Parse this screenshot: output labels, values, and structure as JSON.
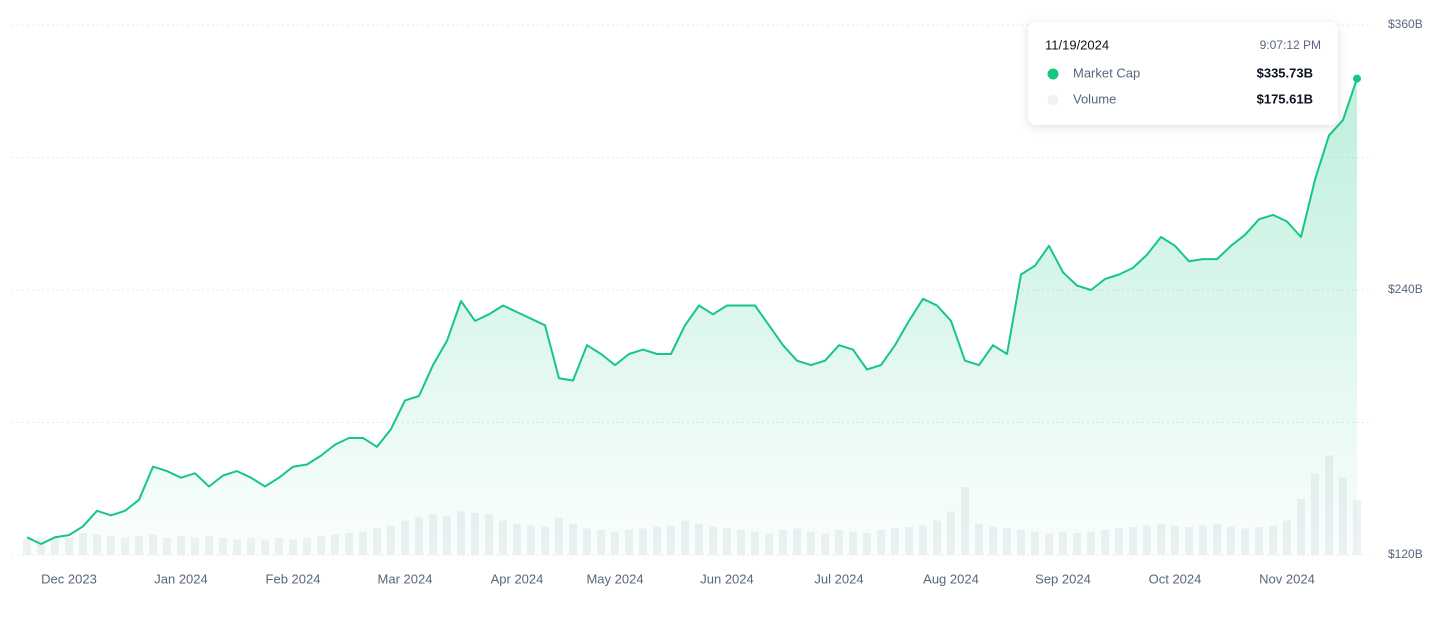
{
  "chart_data": {
    "type": "line",
    "categories": [
      null,
      null,
      null,
      "Dec 2023",
      null,
      null,
      null,
      null,
      null,
      null,
      null,
      "Jan 2024",
      null,
      null,
      null,
      null,
      null,
      null,
      null,
      "Feb 2024",
      null,
      null,
      null,
      null,
      null,
      null,
      null,
      "Mar 2024",
      null,
      null,
      null,
      null,
      null,
      null,
      null,
      "Apr 2024",
      null,
      null,
      null,
      null,
      null,
      null,
      "May 2024",
      null,
      null,
      null,
      null,
      null,
      null,
      null,
      "Jun 2024",
      null,
      null,
      null,
      null,
      null,
      null,
      null,
      "Jul 2024",
      null,
      null,
      null,
      null,
      null,
      null,
      null,
      "Aug 2024",
      null,
      null,
      null,
      null,
      null,
      null,
      null,
      "Sep 2024",
      null,
      null,
      null,
      null,
      null,
      null,
      null,
      "Oct 2024",
      null,
      null,
      null,
      null,
      null,
      null,
      null,
      "Nov 2024",
      null,
      null,
      null,
      null,
      null
    ],
    "series": [
      {
        "name": "Market Cap",
        "color": "#16c784",
        "values": [
          128,
          125,
          128,
          129,
          133,
          140,
          138,
          140,
          145,
          160,
          158,
          155,
          157,
          151,
          156,
          158,
          155,
          151,
          155,
          160,
          161,
          165,
          170,
          173,
          173,
          169,
          177,
          190,
          192,
          206,
          217,
          235,
          226,
          229,
          233,
          230,
          227,
          224,
          200,
          199,
          215,
          211,
          206,
          211,
          213,
          211,
          211,
          224,
          233,
          229,
          233,
          233,
          233,
          224,
          215,
          208,
          206,
          208,
          215,
          213,
          204,
          206,
          215,
          226,
          236,
          233,
          226,
          208,
          206,
          215,
          211,
          247,
          251,
          260,
          248,
          242,
          240,
          245,
          247,
          250,
          256,
          264,
          260,
          253,
          254,
          254,
          260,
          265,
          272,
          274,
          271,
          264,
          290,
          310,
          317,
          335.73
        ]
      },
      {
        "name": "Volume",
        "color": "#eff2f5",
        "axis": "y2",
        "values": [
          50,
          55,
          60,
          55,
          70,
          65,
          60,
          55,
          60,
          65,
          55,
          60,
          55,
          60,
          55,
          50,
          55,
          50,
          55,
          50,
          55,
          60,
          65,
          70,
          75,
          85,
          95,
          110,
          120,
          130,
          125,
          140,
          135,
          130,
          110,
          100,
          95,
          90,
          120,
          100,
          85,
          80,
          75,
          80,
          85,
          90,
          95,
          110,
          100,
          90,
          85,
          80,
          75,
          70,
          80,
          85,
          75,
          70,
          80,
          75,
          70,
          80,
          85,
          90,
          95,
          110,
          140,
          218,
          100,
          90,
          85,
          80,
          75,
          70,
          75,
          70,
          75,
          80,
          85,
          90,
          95,
          100,
          95,
          90,
          95,
          100,
          90,
          85,
          90,
          95,
          110,
          180,
          260,
          320,
          250,
          175.61
        ]
      }
    ],
    "ylim": [
      120,
      360
    ],
    "yticks": [
      {
        "value": 120,
        "label": "$120B"
      },
      {
        "value": 240,
        "label": "$240B"
      },
      {
        "value": 360,
        "label": "$360B"
      }
    ],
    "ygrid": [
      120,
      180,
      240,
      300,
      360
    ],
    "y2lim": [
      0,
      1700
    ],
    "tooltip": {
      "date": "11/19/2024",
      "time": "9:07:12 PM",
      "rows": [
        {
          "label": "Market Cap",
          "value": "$335.73B"
        },
        {
          "label": "Volume",
          "value": "$175.61B"
        }
      ]
    }
  }
}
